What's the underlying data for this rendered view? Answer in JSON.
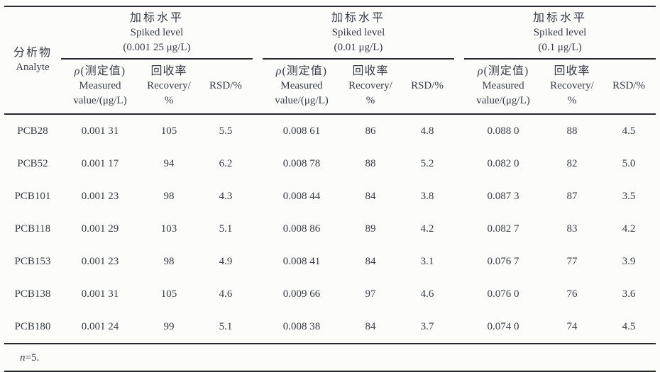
{
  "table": {
    "analyte_header": {
      "zh": "分析物",
      "en": "Analyte"
    },
    "groups": [
      {
        "title_zh": "加标水平",
        "title_en": "Spiked level",
        "level": "(0.001 25 μg/L)"
      },
      {
        "title_zh": "加标水平",
        "title_en": "Spiked level",
        "level": "(0.01 μg/L)"
      },
      {
        "title_zh": "加标水平",
        "title_en": "Spiked level",
        "level": "(0.1 μg/L)"
      }
    ],
    "subheaders": {
      "measured_symbol": "ρ",
      "measured_zh": "(测定值)",
      "measured_en1": "Measured",
      "measured_en2": "value/(μg/L)",
      "recovery_zh": "回收率",
      "recovery_en1": "Recovery/",
      "recovery_en2": "%",
      "rsd": "RSD/%"
    },
    "rows": [
      [
        "PCB28",
        "0.001 31",
        "105",
        "5.5",
        "0.008 61",
        "86",
        "4.8",
        "0.088 0",
        "88",
        "4.5"
      ],
      [
        "PCB52",
        "0.001 17",
        "94",
        "6.2",
        "0.008 78",
        "88",
        "5.2",
        "0.082 0",
        "82",
        "5.0"
      ],
      [
        "PCB101",
        "0.001 23",
        "98",
        "4.3",
        "0.008 44",
        "84",
        "3.8",
        "0.087 3",
        "87",
        "3.5"
      ],
      [
        "PCB118",
        "0.001 29",
        "103",
        "5.1",
        "0.008 86",
        "89",
        "4.2",
        "0.082 7",
        "83",
        "4.2"
      ],
      [
        "PCB153",
        "0.001 23",
        "98",
        "4.9",
        "0.008 41",
        "84",
        "3.1",
        "0.076 7",
        "77",
        "3.9"
      ],
      [
        "PCB138",
        "0.001 31",
        "105",
        "4.6",
        "0.009 66",
        "97",
        "4.6",
        "0.076 0",
        "76",
        "3.6"
      ],
      [
        "PCB180",
        "0.001 24",
        "99",
        "5.1",
        "0.008 38",
        "84",
        "3.7",
        "0.074 0",
        "74",
        "4.5"
      ]
    ],
    "footnote_symbol": "n",
    "footnote_rest": "=5."
  },
  "colors": {
    "text": "#373b44",
    "rule": "#26282c",
    "background": "#fcfcfb"
  }
}
